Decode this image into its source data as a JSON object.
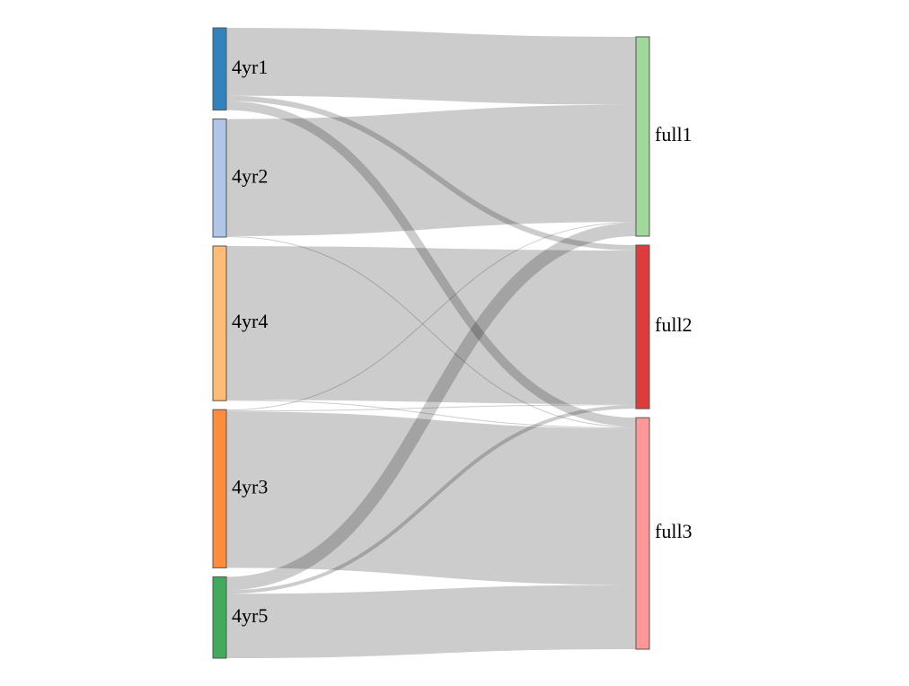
{
  "chart_data": {
    "type": "sankey",
    "title": "",
    "nodes": [
      {
        "id": "4yr1",
        "label": "4yr1",
        "color": "#3182bd"
      },
      {
        "id": "4yr2",
        "label": "4yr2",
        "color": "#aec7e8"
      },
      {
        "id": "4yr4",
        "label": "4yr4",
        "color": "#ffbb78"
      },
      {
        "id": "4yr3",
        "label": "4yr3",
        "color": "#fd8d3c"
      },
      {
        "id": "4yr5",
        "label": "4yr5",
        "color": "#41ab5d"
      },
      {
        "id": "full1",
        "label": "full1",
        "color": "#a1d99b"
      },
      {
        "id": "full2",
        "label": "full2",
        "color": "#de3b3b"
      },
      {
        "id": "full3",
        "label": "full3",
        "color": "#ff9896"
      }
    ],
    "links": [
      {
        "source": "4yr1",
        "target": "full1",
        "value": 76
      },
      {
        "source": "4yr1",
        "target": "full2",
        "value": 6
      },
      {
        "source": "4yr1",
        "target": "full3",
        "value": 10
      },
      {
        "source": "4yr2",
        "target": "full1",
        "value": 131
      },
      {
        "source": "4yr2",
        "target": "full3",
        "value": 1
      },
      {
        "source": "4yr4",
        "target": "full2",
        "value": 172
      },
      {
        "source": "4yr4",
        "target": "full3",
        "value": 1
      },
      {
        "source": "4yr3",
        "target": "full1",
        "value": 1
      },
      {
        "source": "4yr3",
        "target": "full2",
        "value": 1
      },
      {
        "source": "4yr3",
        "target": "full3",
        "value": 175
      },
      {
        "source": "4yr5",
        "target": "full1",
        "value": 15
      },
      {
        "source": "4yr5",
        "target": "full2",
        "value": 4
      },
      {
        "source": "4yr5",
        "target": "full3",
        "value": 72
      }
    ],
    "link_color": "#000000",
    "link_opacity": 0.2
  }
}
